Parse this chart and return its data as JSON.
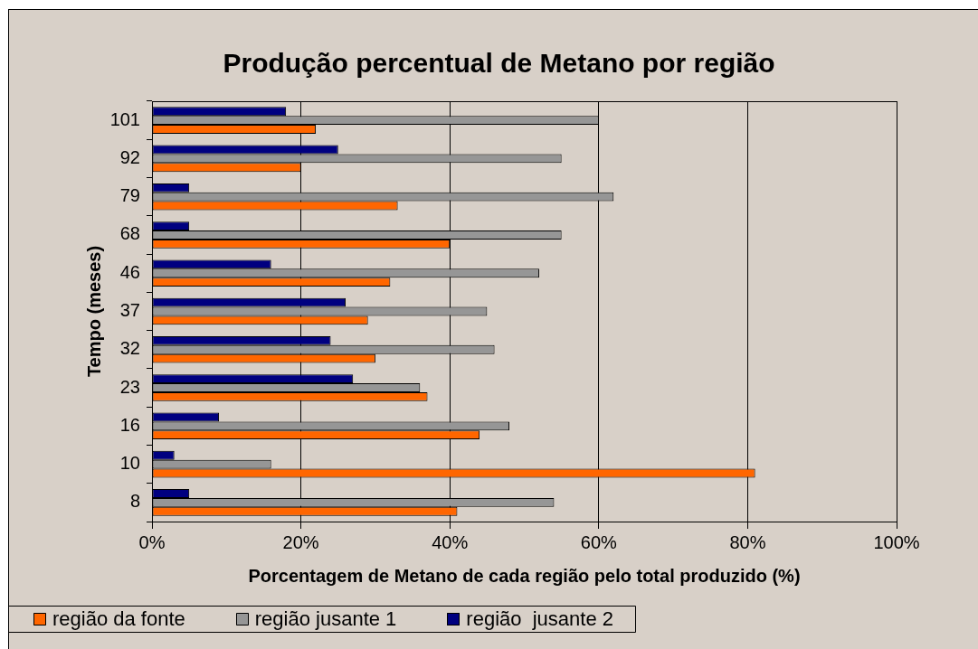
{
  "chart_data": {
    "type": "bar",
    "orientation": "horizontal",
    "title": "Produção percentual de Metano por região",
    "xlabel": "Porcentagem de Metano de cada região pelo total produzido (%)",
    "ylabel": "Tempo (meses)",
    "categories": [
      "101",
      "92",
      "79",
      "68",
      "46",
      "37",
      "32",
      "23",
      "16",
      "10",
      "8"
    ],
    "series": [
      {
        "name": "região da fonte",
        "color": "#ff6600",
        "values": [
          22,
          20,
          33,
          40,
          32,
          29,
          30,
          37,
          44,
          81,
          41
        ]
      },
      {
        "name": "região jusante 1",
        "color": "#969696",
        "values": [
          60,
          55,
          62,
          55,
          52,
          45,
          46,
          36,
          48,
          16,
          54
        ]
      },
      {
        "name": "região  jusante 2",
        "color": "#000080",
        "values": [
          18,
          25,
          5,
          5,
          16,
          26,
          24,
          27,
          9,
          3,
          5
        ]
      }
    ],
    "xlim": [
      0,
      100
    ],
    "xticks": [
      {
        "value": 0,
        "label": "0%"
      },
      {
        "value": 20,
        "label": "20%"
      },
      {
        "value": 40,
        "label": "40%"
      },
      {
        "value": 60,
        "label": "60%"
      },
      {
        "value": 80,
        "label": "80%"
      },
      {
        "value": 100,
        "label": "100%"
      }
    ],
    "grid": "x",
    "legend": "bottom left"
  }
}
